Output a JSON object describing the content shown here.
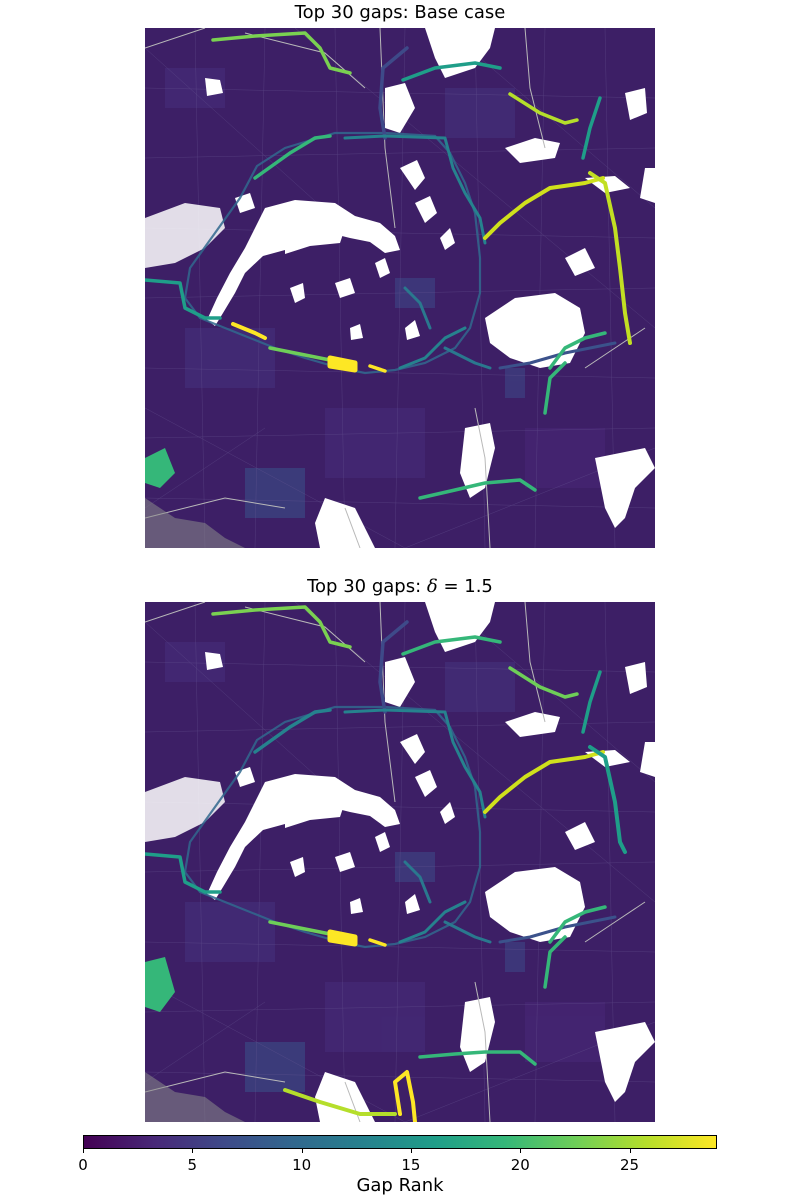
{
  "panels": [
    {
      "title_prefix": "Top 30 gaps: ",
      "title_main": "Base case",
      "title_symbol": "",
      "title_suffix": ""
    },
    {
      "title_prefix": "Top 30 gaps: ",
      "title_main": "",
      "title_symbol": "δ",
      "title_suffix": " = 1.5"
    }
  ],
  "colorbar": {
    "label": "Gap Rank",
    "min": 0,
    "max": 29,
    "ticks": [
      "0",
      "5",
      "10",
      "15",
      "20",
      "25"
    ],
    "tick_values": [
      0,
      5,
      10,
      15,
      20,
      25
    ],
    "colors": [
      "#440154",
      "#482878",
      "#3e4a89",
      "#31688e",
      "#26828e",
      "#1f9e89",
      "#35b779",
      "#6ece58",
      "#b5de2b",
      "#fde725"
    ]
  },
  "map_colors": {
    "background_fill": "#3d1f66",
    "white_area": "#ffffff",
    "road_line": "#b9b9b9"
  }
}
